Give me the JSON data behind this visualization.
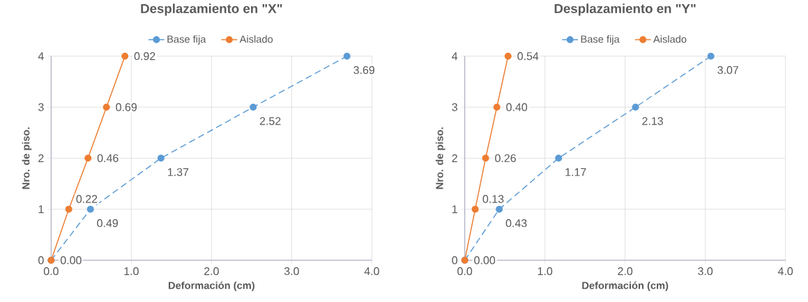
{
  "chart_data": [
    {
      "type": "line",
      "title": "Desplazamiento en \"X\"",
      "xlabel": "Deformación (cm)",
      "ylabel": "Nro. de piso.",
      "xlim": [
        0,
        4
      ],
      "xticks": [
        {
          "value": 0,
          "label": "0.0"
        },
        {
          "value": 1,
          "label": "1.0"
        },
        {
          "value": 2,
          "label": "2.0"
        },
        {
          "value": 3,
          "label": "3.0"
        },
        {
          "value": 4,
          "label": "4.0"
        }
      ],
      "ylim": [
        0,
        4
      ],
      "yticks": [
        0,
        1,
        2,
        3,
        4
      ],
      "grid": true,
      "legend": "top",
      "marker": "circle",
      "series": [
        {
          "name": "Base fija",
          "color": "#5b9bd5",
          "line_style": "dashed",
          "x": [
            0.0,
            0.49,
            1.37,
            2.52,
            3.69
          ],
          "values": [
            0,
            1,
            2,
            3,
            4
          ]
        },
        {
          "name": "Aislado",
          "color": "#ed7d31",
          "line_style": "solid",
          "x": [
            0.0,
            0.22,
            0.46,
            0.69,
            0.92
          ],
          "values": [
            0,
            1,
            2,
            3,
            4
          ]
        }
      ],
      "annotations": [
        {
          "text": "0.49",
          "x": 0.49,
          "y": 1
        },
        {
          "text": "1.37",
          "x": 1.37,
          "y": 2
        },
        {
          "text": "2.52",
          "x": 2.52,
          "y": 3
        },
        {
          "text": "3.69",
          "x": 3.69,
          "y": 4
        },
        {
          "text": "0.00",
          "x": 0.0,
          "y": 0
        },
        {
          "text": "0.22",
          "x": 0.22,
          "y": 1
        },
        {
          "text": "0.46",
          "x": 0.46,
          "y": 2
        },
        {
          "text": "0.69",
          "x": 0.69,
          "y": 3
        },
        {
          "text": "0.92",
          "x": 0.92,
          "y": 4
        }
      ]
    },
    {
      "type": "line",
      "title": "Desplazamiento en \"Y\"",
      "xlabel": "Deformación (cm)",
      "ylabel": "Nro. de piso.",
      "xlim": [
        0,
        4
      ],
      "xticks": [
        {
          "value": 0,
          "label": "0.0"
        },
        {
          "value": 1,
          "label": "1.0"
        },
        {
          "value": 2,
          "label": "2.0"
        },
        {
          "value": 3,
          "label": "3.0"
        },
        {
          "value": 4,
          "label": "4.0"
        }
      ],
      "ylim": [
        0,
        4
      ],
      "yticks": [
        0,
        1,
        2,
        3,
        4
      ],
      "grid": true,
      "legend": "top",
      "marker": "circle",
      "series": [
        {
          "name": "Base fija",
          "color": "#5b9bd5",
          "line_style": "dashed",
          "x": [
            0.0,
            0.43,
            1.17,
            2.13,
            3.07
          ],
          "values": [
            0,
            1,
            2,
            3,
            4
          ]
        },
        {
          "name": "Aislado",
          "color": "#ed7d31",
          "line_style": "solid",
          "x": [
            0.0,
            0.13,
            0.26,
            0.4,
            0.54
          ],
          "values": [
            0,
            1,
            2,
            3,
            4
          ]
        }
      ],
      "annotations": [
        {
          "text": "0.43",
          "x": 0.43,
          "y": 1
        },
        {
          "text": "1.17",
          "x": 1.17,
          "y": 2
        },
        {
          "text": "2.13",
          "x": 2.13,
          "y": 3
        },
        {
          "text": "3.07",
          "x": 3.07,
          "y": 4
        },
        {
          "text": "0.00",
          "x": 0.0,
          "y": 0
        },
        {
          "text": "0.13",
          "x": 0.13,
          "y": 1
        },
        {
          "text": "0.26",
          "x": 0.26,
          "y": 2
        },
        {
          "text": "0.40",
          "x": 0.4,
          "y": 3
        },
        {
          "text": "0.54",
          "x": 0.54,
          "y": 4
        }
      ]
    }
  ]
}
